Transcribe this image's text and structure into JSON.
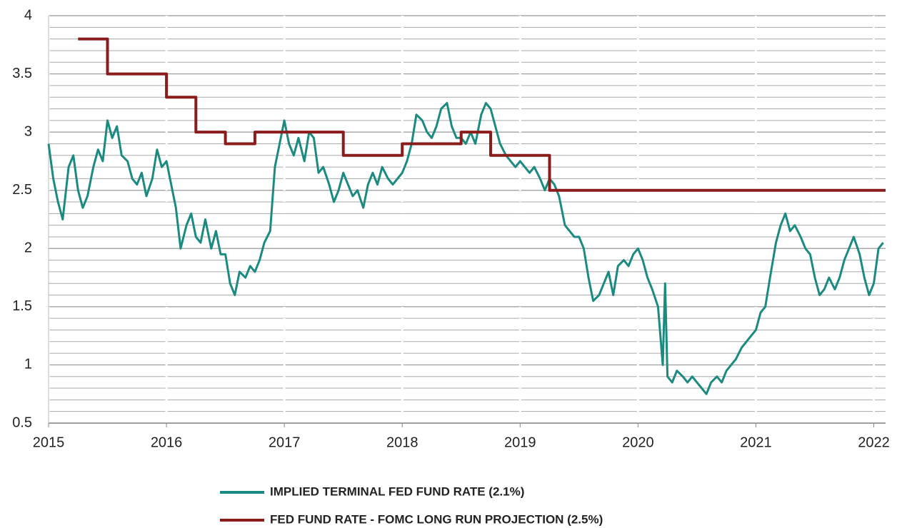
{
  "chart_data": {
    "type": "line",
    "xlim": [
      2015,
      2022.1
    ],
    "xticks": [
      2015,
      2016,
      2017,
      2018,
      2019,
      2020,
      2021,
      2022
    ],
    "ylim": [
      0.5,
      4
    ],
    "yticks": [
      0.5,
      1,
      1.5,
      2,
      2.5,
      3,
      3.5,
      4
    ],
    "minor_yticks": [
      0.6,
      0.7,
      0.8,
      0.9,
      1.1,
      1.2,
      1.3,
      1.4,
      1.6,
      1.7,
      1.8,
      1.9,
      2.1,
      2.2,
      2.3,
      2.4,
      2.6,
      2.7,
      2.8,
      2.9,
      3.1,
      3.2,
      3.3,
      3.4,
      3.6,
      3.7,
      3.8,
      3.9
    ],
    "grid": true,
    "legend": "bottom",
    "series": [
      {
        "name": "IMPLIED TERMINAL FED FUND RATE (2.1%)",
        "color": "#1b8a80",
        "x": [
          2015.0,
          2015.04,
          2015.08,
          2015.12,
          2015.17,
          2015.21,
          2015.25,
          2015.29,
          2015.33,
          2015.38,
          2015.42,
          2015.46,
          2015.5,
          2015.54,
          2015.58,
          2015.62,
          2015.67,
          2015.71,
          2015.75,
          2015.79,
          2015.83,
          2015.88,
          2015.92,
          2015.96,
          2016.0,
          2016.04,
          2016.08,
          2016.12,
          2016.17,
          2016.21,
          2016.25,
          2016.29,
          2016.33,
          2016.38,
          2016.42,
          2016.46,
          2016.5,
          2016.54,
          2016.58,
          2016.62,
          2016.67,
          2016.71,
          2016.75,
          2016.79,
          2016.83,
          2016.88,
          2016.92,
          2016.96,
          2017.0,
          2017.04,
          2017.08,
          2017.12,
          2017.17,
          2017.21,
          2017.25,
          2017.29,
          2017.33,
          2017.38,
          2017.42,
          2017.46,
          2017.5,
          2017.54,
          2017.58,
          2017.62,
          2017.67,
          2017.71,
          2017.75,
          2017.79,
          2017.83,
          2017.88,
          2017.92,
          2017.96,
          2018.0,
          2018.04,
          2018.08,
          2018.12,
          2018.17,
          2018.21,
          2018.25,
          2018.29,
          2018.33,
          2018.38,
          2018.42,
          2018.46,
          2018.5,
          2018.54,
          2018.58,
          2018.62,
          2018.67,
          2018.71,
          2018.75,
          2018.79,
          2018.83,
          2018.88,
          2018.92,
          2018.96,
          2019.0,
          2019.04,
          2019.08,
          2019.12,
          2019.17,
          2019.21,
          2019.25,
          2019.29,
          2019.33,
          2019.38,
          2019.42,
          2019.46,
          2019.5,
          2019.54,
          2019.58,
          2019.62,
          2019.67,
          2019.71,
          2019.75,
          2019.79,
          2019.83,
          2019.88,
          2019.92,
          2019.96,
          2020.0,
          2020.04,
          2020.08,
          2020.12,
          2020.17,
          2020.21,
          2020.23,
          2020.25,
          2020.29,
          2020.33,
          2020.38,
          2020.42,
          2020.46,
          2020.5,
          2020.54,
          2020.58,
          2020.62,
          2020.67,
          2020.71,
          2020.75,
          2020.79,
          2020.83,
          2020.88,
          2020.92,
          2020.96,
          2021.0,
          2021.04,
          2021.08,
          2021.12,
          2021.17,
          2021.21,
          2021.25,
          2021.29,
          2021.33,
          2021.38,
          2021.42,
          2021.46,
          2021.5,
          2021.54,
          2021.58,
          2021.62,
          2021.67,
          2021.71,
          2021.75,
          2021.79,
          2021.83,
          2021.88,
          2021.92,
          2021.96,
          2022.0,
          2022.04,
          2022.08
        ],
        "values": [
          2.9,
          2.6,
          2.4,
          2.25,
          2.7,
          2.8,
          2.5,
          2.35,
          2.45,
          2.7,
          2.85,
          2.75,
          3.1,
          2.95,
          3.05,
          2.8,
          2.75,
          2.6,
          2.55,
          2.65,
          2.45,
          2.6,
          2.85,
          2.7,
          2.75,
          2.55,
          2.35,
          2.0,
          2.2,
          2.3,
          2.1,
          2.05,
          2.25,
          2.0,
          2.15,
          1.95,
          1.95,
          1.7,
          1.6,
          1.8,
          1.75,
          1.85,
          1.8,
          1.9,
          2.05,
          2.15,
          2.7,
          2.9,
          3.1,
          2.9,
          2.8,
          2.95,
          2.75,
          3.0,
          2.95,
          2.65,
          2.7,
          2.55,
          2.4,
          2.5,
          2.65,
          2.55,
          2.45,
          2.5,
          2.35,
          2.55,
          2.65,
          2.55,
          2.7,
          2.6,
          2.55,
          2.6,
          2.65,
          2.75,
          2.9,
          3.15,
          3.1,
          3.0,
          2.95,
          3.05,
          3.2,
          3.25,
          3.05,
          2.95,
          2.95,
          2.9,
          3.0,
          2.9,
          3.15,
          3.25,
          3.2,
          3.05,
          2.9,
          2.8,
          2.75,
          2.7,
          2.75,
          2.7,
          2.65,
          2.7,
          2.6,
          2.5,
          2.6,
          2.55,
          2.45,
          2.2,
          2.15,
          2.1,
          2.1,
          2.0,
          1.75,
          1.55,
          1.6,
          1.7,
          1.8,
          1.6,
          1.85,
          1.9,
          1.85,
          1.95,
          2.0,
          1.9,
          1.75,
          1.65,
          1.5,
          1.0,
          1.7,
          0.9,
          0.85,
          0.95,
          0.9,
          0.85,
          0.9,
          0.85,
          0.8,
          0.75,
          0.85,
          0.9,
          0.85,
          0.95,
          1.0,
          1.05,
          1.15,
          1.2,
          1.25,
          1.3,
          1.45,
          1.5,
          1.75,
          2.05,
          2.2,
          2.3,
          2.15,
          2.2,
          2.1,
          2.0,
          1.95,
          1.75,
          1.6,
          1.65,
          1.75,
          1.65,
          1.75,
          1.9,
          2.0,
          2.1,
          1.95,
          1.75,
          1.6,
          1.7,
          2.0,
          2.05
        ]
      },
      {
        "name": "FED FUND RATE - FOMC LONG RUN PROJECTION (2.5%)",
        "color": "#8b1c1c",
        "step": "post",
        "x": [
          2015.25,
          2015.5,
          2016,
          2016.25,
          2016.5,
          2016.75,
          2017.5,
          2018,
          2018.5,
          2018.75,
          2019.25,
          2022.1
        ],
        "values": [
          3.8,
          3.5,
          3.3,
          3.0,
          2.9,
          3.0,
          2.8,
          2.9,
          3.0,
          2.8,
          2.5,
          2.5
        ]
      }
    ]
  }
}
